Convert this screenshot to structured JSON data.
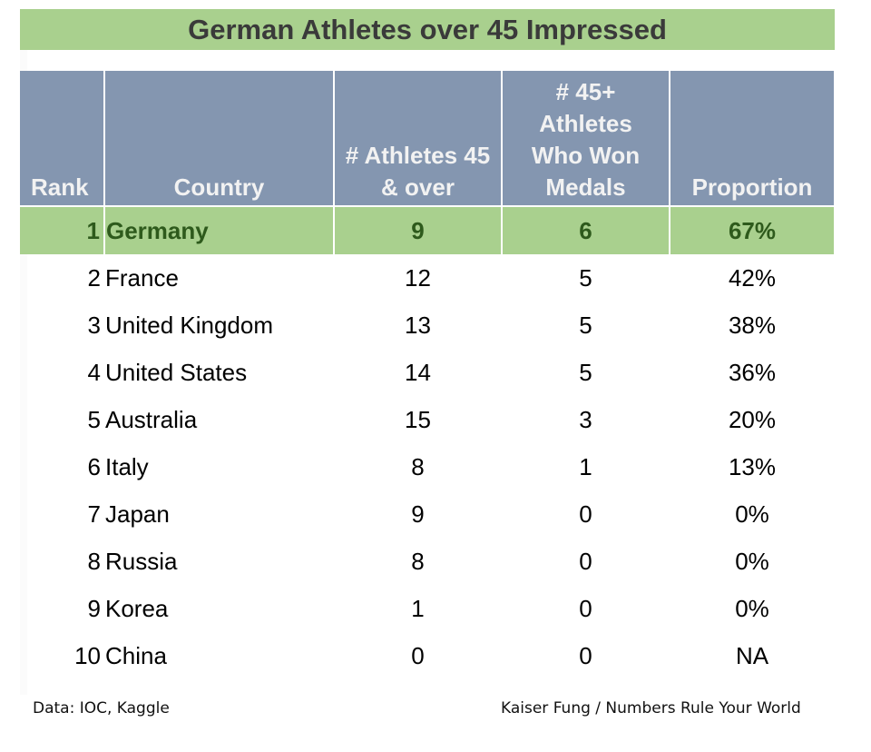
{
  "title": "German Athletes over 45 Impressed",
  "table": {
    "headers": {
      "rank": "Rank",
      "country": "Country",
      "athletes_line1": "# Athletes 45",
      "athletes_line2": "& over",
      "medals_line1": "# 45+",
      "medals_line2": "Athletes",
      "medals_line3": "Who Won",
      "medals_line4": "Medals",
      "proportion": "Proportion"
    },
    "rows": [
      {
        "rank": "1",
        "country": "Germany",
        "athletes": "9",
        "medals": "6",
        "proportion": "67%"
      },
      {
        "rank": "2",
        "country": "France",
        "athletes": "12",
        "medals": "5",
        "proportion": "42%"
      },
      {
        "rank": "3",
        "country": "United Kingdom",
        "athletes": "13",
        "medals": "5",
        "proportion": "38%"
      },
      {
        "rank": "4",
        "country": "United States",
        "athletes": "14",
        "medals": "5",
        "proportion": "36%"
      },
      {
        "rank": "5",
        "country": "Australia",
        "athletes": "15",
        "medals": "3",
        "proportion": "20%"
      },
      {
        "rank": "6",
        "country": "Italy",
        "athletes": "8",
        "medals": "1",
        "proportion": "13%"
      },
      {
        "rank": "7",
        "country": "Japan",
        "athletes": "9",
        "medals": "0",
        "proportion": "0%"
      },
      {
        "rank": "8",
        "country": "Russia",
        "athletes": "8",
        "medals": "0",
        "proportion": "0%"
      },
      {
        "rank": "9",
        "country": "Korea",
        "athletes": "1",
        "medals": "0",
        "proportion": "0%"
      },
      {
        "rank": "10",
        "country": "China",
        "athletes": "0",
        "medals": "0",
        "proportion": "NA"
      }
    ]
  },
  "footer": {
    "source": "Data: IOC, Kaggle",
    "credit": "Kaiser Fung / Numbers Rule Your World"
  },
  "colors": {
    "title_bg": "#a9d08e",
    "header_bg": "#8496b0",
    "highlight_bg": "#a9d08e",
    "highlight_text": "#2e5a1c"
  },
  "chart_data": {
    "type": "table",
    "title": "German Athletes over 45 Impressed",
    "columns": [
      "Rank",
      "Country",
      "# Athletes 45 & over",
      "# 45+ Athletes Who Won Medals",
      "Proportion"
    ],
    "rows": [
      [
        1,
        "Germany",
        9,
        6,
        "67%"
      ],
      [
        2,
        "France",
        12,
        5,
        "42%"
      ],
      [
        3,
        "United Kingdom",
        13,
        5,
        "38%"
      ],
      [
        4,
        "United States",
        14,
        5,
        "36%"
      ],
      [
        5,
        "Australia",
        15,
        3,
        "20%"
      ],
      [
        6,
        "Italy",
        8,
        1,
        "13%"
      ],
      [
        7,
        "Japan",
        9,
        0,
        "0%"
      ],
      [
        8,
        "Russia",
        8,
        0,
        "0%"
      ],
      [
        9,
        "Korea",
        1,
        0,
        "0%"
      ],
      [
        10,
        "China",
        0,
        0,
        "NA"
      ]
    ],
    "highlighted_row": 1,
    "annotations": [
      "Data: IOC, Kaggle",
      "Kaiser Fung / Numbers Rule Your World"
    ]
  }
}
